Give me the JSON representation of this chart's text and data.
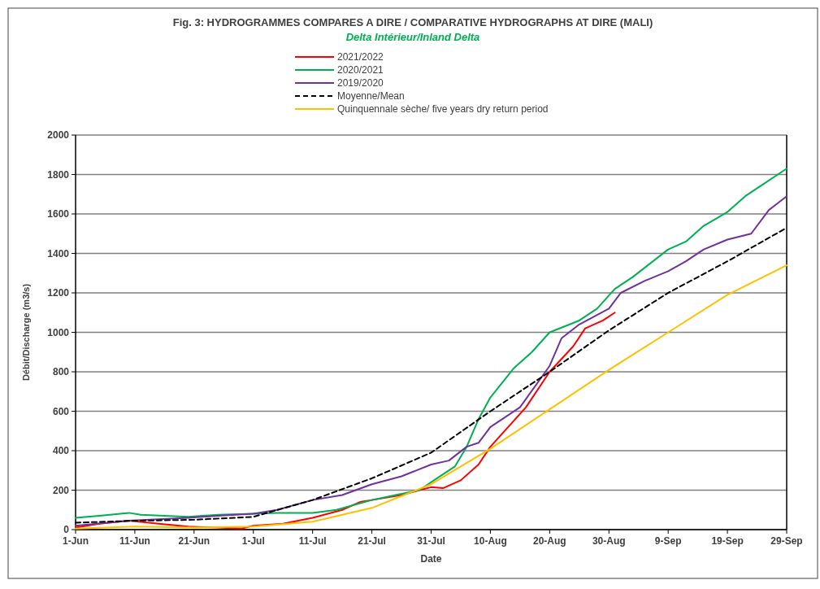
{
  "chart_data": {
    "type": "line",
    "title": "Fig. 3:   HYDROGRAMMES COMPARES  A DIRE / COMPARATIVE  HYDROGRAPHS AT DIRE (MALI)",
    "subtitle": "Delta Intérieur/Inland Delta",
    "xlabel": "Date",
    "ylabel": "Débit/Discharge (m3/s)",
    "xlim": [
      "--06-01",
      "--09-29"
    ],
    "xticks": [
      {
        "value": "--06-01",
        "label": "1-Jun"
      },
      {
        "value": "--06-11",
        "label": "11-Jun"
      },
      {
        "value": "--06-21",
        "label": "21-Jun"
      },
      {
        "value": "--07-01",
        "label": "1-Jul"
      },
      {
        "value": "--07-11",
        "label": "11-Jul"
      },
      {
        "value": "--07-21",
        "label": "21-Jul"
      },
      {
        "value": "--07-31",
        "label": "31-Jul"
      },
      {
        "value": "--08-10",
        "label": "10-Aug"
      },
      {
        "value": "--08-20",
        "label": "20-Aug"
      },
      {
        "value": "--08-30",
        "label": "30-Aug"
      },
      {
        "value": "--09-09",
        "label": "9-Sep"
      },
      {
        "value": "--09-19",
        "label": "19-Sep"
      },
      {
        "value": "--09-29",
        "label": "29-Sep"
      }
    ],
    "ylim": [
      0,
      2000
    ],
    "yticks": [
      0,
      200,
      400,
      600,
      800,
      1000,
      1200,
      1400,
      1600,
      1800,
      2000
    ],
    "grid": "y",
    "legend": "top",
    "series": [
      {
        "name": "2021/2022",
        "color": "#ff0000",
        "line_style": "solid",
        "x": [
          "--06-01",
          "--06-05",
          "--06-10",
          "--06-15",
          "--06-20",
          "--06-25",
          "--06-29",
          "--07-01",
          "--07-06",
          "--07-11",
          "--07-16",
          "--07-19",
          "--07-21",
          "--07-26",
          "--07-29",
          "--07-31",
          "--08-02",
          "--08-05",
          "--08-08",
          "--08-10",
          "--08-13",
          "--08-16",
          "--08-20",
          "--08-24",
          "--08-26",
          "--08-29",
          "--08-31"
        ],
        "values": [
          10,
          30,
          45,
          30,
          15,
          10,
          5,
          20,
          30,
          60,
          100,
          140,
          150,
          175,
          200,
          215,
          210,
          250,
          330,
          420,
          520,
          620,
          800,
          930,
          1020,
          1060,
          1100
        ]
      },
      {
        "name": "2020/2021",
        "color": "#00b050",
        "line_style": "solid",
        "x": [
          "--06-01",
          "--06-05",
          "--06-10",
          "--06-12",
          "--06-20",
          "--06-25",
          "--07-01",
          "--07-05",
          "--07-11",
          "--07-15",
          "--07-21",
          "--07-25",
          "--07-29",
          "--08-01",
          "--08-04",
          "--08-06",
          "--08-08",
          "--08-10",
          "--08-14",
          "--08-17",
          "--08-20",
          "--08-25",
          "--08-28",
          "--08-31",
          "--09-03",
          "--09-06",
          "--09-09",
          "--09-12",
          "--09-15",
          "--09-19",
          "--09-22",
          "--09-25",
          "--09-29"
        ],
        "values": [
          60,
          70,
          85,
          75,
          65,
          75,
          80,
          85,
          85,
          100,
          150,
          175,
          200,
          260,
          320,
          420,
          560,
          670,
          820,
          900,
          1000,
          1060,
          1120,
          1220,
          1280,
          1350,
          1420,
          1460,
          1540,
          1610,
          1690,
          1750,
          1830
        ]
      },
      {
        "name": "2019/2020",
        "color": "#7030a0",
        "line_style": "solid",
        "x": [
          "--06-01",
          "--06-10",
          "--06-20",
          "--06-25",
          "--07-01",
          "--07-05",
          "--07-11",
          "--07-16",
          "--07-21",
          "--07-26",
          "--07-31",
          "--08-03",
          "--08-06",
          "--08-08",
          "--08-10",
          "--08-15",
          "--08-20",
          "--08-22",
          "--08-25",
          "--08-30",
          "--09-01",
          "--09-05",
          "--09-09",
          "--09-12",
          "--09-15",
          "--09-19",
          "--09-23",
          "--09-26",
          "--09-29"
        ],
        "values": [
          20,
          45,
          60,
          70,
          80,
          100,
          150,
          175,
          230,
          270,
          330,
          350,
          420,
          440,
          520,
          620,
          830,
          970,
          1040,
          1120,
          1200,
          1260,
          1310,
          1360,
          1420,
          1470,
          1500,
          1620,
          1690
        ]
      },
      {
        "name": "Moyenne/Mean",
        "color": "#000000",
        "line_style": "dashed",
        "x": [
          "--06-01",
          "--06-11",
          "--06-21",
          "--07-01",
          "--07-11",
          "--07-21",
          "--07-31",
          "--08-10",
          "--08-20",
          "--08-30",
          "--09-09",
          "--09-19",
          "--09-29"
        ],
        "values": [
          35,
          45,
          50,
          65,
          150,
          260,
          390,
          600,
          800,
          1010,
          1200,
          1360,
          1530
        ]
      },
      {
        "name": "Quinquennale sèche/ five years dry return period",
        "color": "#ffc000",
        "line_style": "solid",
        "x": [
          "--06-01",
          "--06-11",
          "--06-21",
          "--07-01",
          "--07-11",
          "--07-21",
          "--07-31",
          "--08-10",
          "--08-20",
          "--08-30",
          "--09-09",
          "--09-19",
          "--09-29"
        ],
        "values": [
          5,
          15,
          10,
          15,
          40,
          110,
          230,
          410,
          610,
          810,
          1000,
          1190,
          1340
        ]
      }
    ]
  }
}
